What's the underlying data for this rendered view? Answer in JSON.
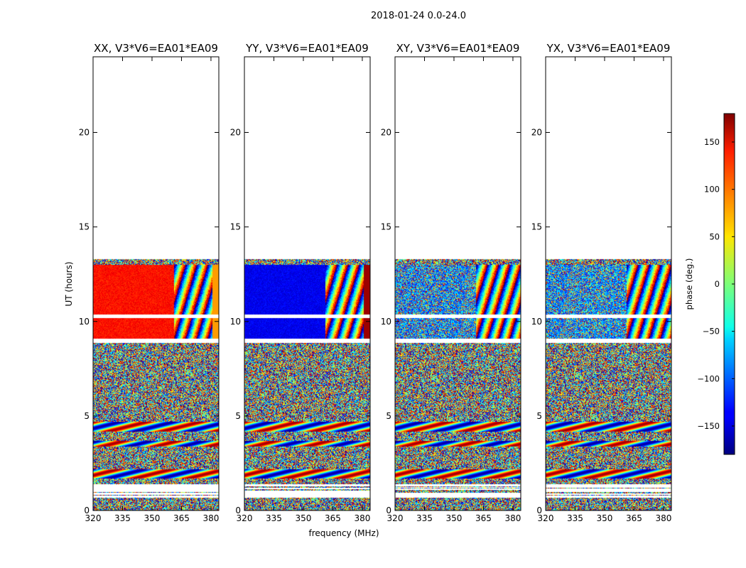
{
  "figure": {
    "suptitle": "2018-01-24 0.0-24.0"
  },
  "chart_data": {
    "type": "heatmap",
    "title": "2018-01-24 0.0-24.0",
    "xlabel": "frequency (MHz)",
    "ylabel": "UT (hours)",
    "xlim": [
      320,
      384
    ],
    "ylim": [
      0,
      24
    ],
    "x_ticks": [
      "320",
      "335",
      "350",
      "365",
      "380"
    ],
    "y_ticks": [
      "0",
      "5",
      "10",
      "15",
      "20"
    ],
    "colorbar": {
      "label": "phase (deg.)",
      "range": [
        -180,
        180
      ],
      "ticks": [
        "150",
        "100",
        "50",
        "0",
        "−50",
        "−100",
        "−150"
      ],
      "tick_values": [
        150,
        100,
        50,
        0,
        -50,
        -100,
        -150
      ],
      "colormap": "jet"
    },
    "panels": [
      {
        "title": "XX, V3*V6=EA01*EA09",
        "coherent_phase_deg": 130,
        "coherent_band_end_mhz": 361
      },
      {
        "title": "YY, V3*V6=EA01*EA09",
        "coherent_phase_deg": -140,
        "coherent_band_end_mhz": 361
      },
      {
        "title": "XY, V3*V6=EA01*EA09",
        "coherent_phase_deg": null,
        "coherent_band_end_mhz": 361
      },
      {
        "title": "YX, V3*V6=EA01*EA09",
        "coherent_phase_deg": null,
        "coherent_band_end_mhz": 361
      }
    ],
    "data_coverage_hours": [
      0.0,
      13.4
    ],
    "blank_rows_hours": [
      0.8,
      1.3,
      9.0,
      10.3,
      13.4
    ]
  }
}
